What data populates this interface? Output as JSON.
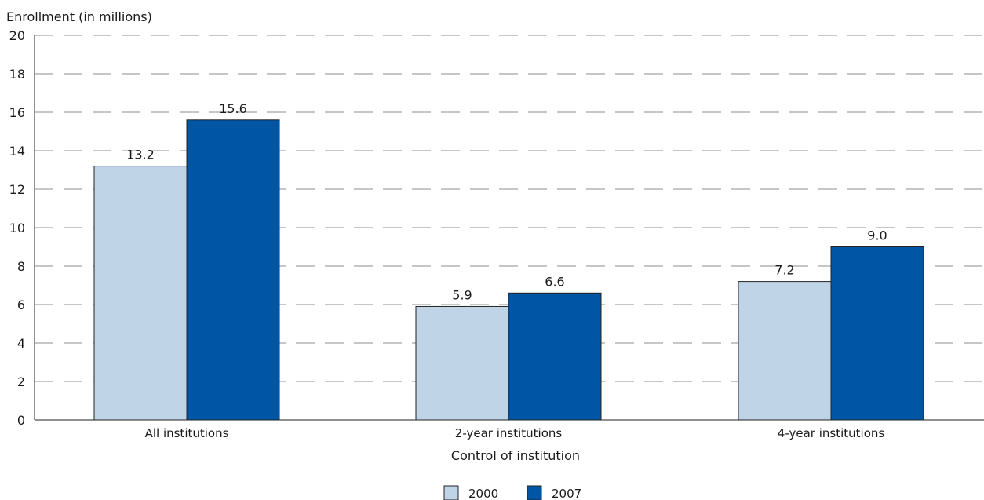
{
  "chart_data": {
    "type": "bar",
    "ylabel": "Enrollment (in millions)",
    "xlabel": "Control of institution",
    "ylim": [
      0,
      20
    ],
    "yticks": [
      "0",
      "2",
      "4",
      "6",
      "8",
      "10",
      "12",
      "14",
      "16",
      "18",
      "20"
    ],
    "grid": true,
    "legend_position": "bottom-center",
    "categories": [
      "All institutions",
      "2-year institutions",
      "4-year institutions"
    ],
    "series": [
      {
        "name": "2000",
        "color": "#c0d4e8",
        "values": [
          13.2,
          5.9,
          7.2
        ],
        "value_labels": [
          "13.2",
          "5.9",
          "7.2"
        ]
      },
      {
        "name": "2007",
        "color": "#0055a5",
        "values": [
          15.6,
          6.6,
          9.0
        ],
        "value_labels": [
          "15.6",
          "6.6",
          "9.0"
        ]
      }
    ]
  }
}
